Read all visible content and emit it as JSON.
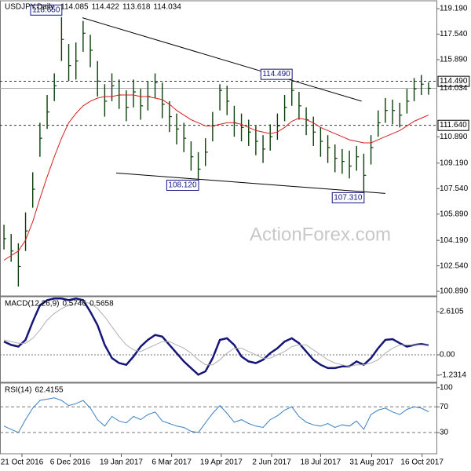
{
  "chart_data": [
    {
      "type": "ohlc",
      "title": "USDJPY,Daily",
      "open": 114.085,
      "color": "#0b3d0b",
      "watermark": "ActionForex.com",
      "ylim": [
        100.59,
        119.7
      ],
      "yticks": [
        {
          "value": 119.19,
          "label": "119.190"
        },
        {
          "value": 117.54,
          "label": "117.540"
        },
        {
          "value": 115.89,
          "label": "115.890"
        },
        {
          "value": 110.89,
          "label": "110.890"
        },
        {
          "value": 109.19,
          "label": "109.190"
        },
        {
          "value": 107.54,
          "label": "107.540"
        },
        {
          "value": 105.89,
          "label": "105.890"
        },
        {
          "value": 104.19,
          "label": "104.190"
        },
        {
          "value": 102.54,
          "label": "102.540"
        },
        {
          "value": 100.89,
          "label": "100.890"
        }
      ],
      "high": [
        105.2,
        104.6,
        104.0,
        106.0,
        108.6,
        111.8,
        113.6,
        115.0,
        118.65,
        116.9,
        117.0,
        118.4,
        117.5,
        115.8,
        114.3,
        115.0,
        114.6,
        113.9,
        114.6,
        114.0,
        114.5,
        115.0,
        114.4,
        113.2,
        112.4,
        111.8,
        110.6,
        109.9,
        110.8,
        112.5,
        114.3,
        114.2,
        112.9,
        112.4,
        112.0,
        111.6,
        111.0,
        111.7,
        112.4,
        113.6,
        114.49,
        113.8,
        112.8,
        112.2,
        111.5,
        111.0,
        110.4,
        110.1,
        110.0,
        110.3,
        109.8,
        111.0,
        112.6,
        113.4,
        113.3,
        113.1,
        114.0,
        114.7,
        114.9,
        114.422
      ],
      "low": [
        103.6,
        102.8,
        101.2,
        103.5,
        106.3,
        109.6,
        111.4,
        113.2,
        115.8,
        114.5,
        114.6,
        116.4,
        115.4,
        113.5,
        112.2,
        113.2,
        112.7,
        111.9,
        112.8,
        112.0,
        112.6,
        113.4,
        112.1,
        111.2,
        110.4,
        109.9,
        108.7,
        108.12,
        109.0,
        110.6,
        112.6,
        112.3,
        110.9,
        110.6,
        110.3,
        109.7,
        109.2,
        110.0,
        110.7,
        111.9,
        112.9,
        112.0,
        111.0,
        110.3,
        109.6,
        109.2,
        108.6,
        108.5,
        108.2,
        108.7,
        107.31,
        109.1,
        110.9,
        111.8,
        111.7,
        111.5,
        112.4,
        113.2,
        113.6,
        113.618
      ],
      "close": [
        104.3,
        103.5,
        102.5,
        104.8,
        107.5,
        110.8,
        112.5,
        114.2,
        117.2,
        115.5,
        115.8,
        117.6,
        116.5,
        114.5,
        113.2,
        114.2,
        113.6,
        112.8,
        113.8,
        112.9,
        113.5,
        114.4,
        113.0,
        112.2,
        111.4,
        110.8,
        109.6,
        108.8,
        109.9,
        111.6,
        113.9,
        113.2,
        111.8,
        111.5,
        111.2,
        110.6,
        110.1,
        110.9,
        111.6,
        112.8,
        113.9,
        112.9,
        112.0,
        111.2,
        110.6,
        110.2,
        109.5,
        109.3,
        109.0,
        109.6,
        108.4,
        110.2,
        111.8,
        112.6,
        112.6,
        112.3,
        113.2,
        114.0,
        114.3,
        114.034
      ],
      "ma": {
        "color": "#d42020",
        "values": [
          102.9,
          103.2,
          103.5,
          104.2,
          105.4,
          106.9,
          108.3,
          109.6,
          110.8,
          111.8,
          112.4,
          112.9,
          113.2,
          113.4,
          113.5,
          113.5,
          113.6,
          113.6,
          113.6,
          113.5,
          113.5,
          113.4,
          113.3,
          113.0,
          112.6,
          112.3,
          112.0,
          111.8,
          111.6,
          111.6,
          111.7,
          111.8,
          111.8,
          111.7,
          111.5,
          111.3,
          111.2,
          111.1,
          111.2,
          111.5,
          111.9,
          112.1,
          112.0,
          111.8,
          111.5,
          111.3,
          111.1,
          110.9,
          110.7,
          110.6,
          110.5,
          110.5,
          110.7,
          110.9,
          111.1,
          111.3,
          111.6,
          111.9,
          112.1,
          112.3
        ]
      },
      "levels": [
        {
          "value": 114.49,
          "label": "114.490"
        },
        {
          "value": 111.64,
          "label": "111.640"
        }
      ],
      "annotations": [
        {
          "bar": 8,
          "value": 118.65,
          "label": "118.650"
        },
        {
          "bar": 40,
          "value": 114.49,
          "label": "114.490"
        },
        {
          "bar": 27,
          "value": 108.12,
          "label": "108.120"
        },
        {
          "bar": 50,
          "value": 107.31,
          "label": "107.310"
        }
      ],
      "trendlines": [
        {
          "x": [
            10.9,
            49.7
          ],
          "y": [
            118.6,
            113.2
          ]
        },
        {
          "x": [
            15.6,
            53.0
          ],
          "y": [
            108.55,
            107.23
          ]
        }
      ]
    },
    {
      "type": "macd",
      "title": "MACD(12,26,9)",
      "ylim": [
        -1.66,
        3.51
      ],
      "yticks": [
        2.6105,
        {
          "value": 0,
          "label": "0.00"
        },
        -1.2314
      ],
      "levels": [
        0
      ],
      "series": [
        {
          "color": "#15157a",
          "values": [
            0.8,
            0.6,
            0.5,
            0.9,
            2.0,
            3.0,
            3.3,
            3.4,
            3.4,
            3.3,
            3.4,
            3.3,
            2.6,
            1.8,
            0.6,
            -0.2,
            -0.5,
            -0.6,
            -0.1,
            0.5,
            0.9,
            1.2,
            1.1,
            0.6,
            0.1,
            -0.4,
            -0.8,
            -1.2,
            -1.0,
            -0.2,
            0.9,
            1.0,
            0.6,
            -0.1,
            -0.4,
            -0.5,
            -0.3,
            0.1,
            0.4,
            0.8,
            1.0,
            0.7,
            0.2,
            -0.3,
            -0.6,
            -0.8,
            -0.8,
            -0.7,
            -0.7,
            -0.4,
            -0.6,
            -0.2,
            0.4,
            0.9,
            0.95,
            0.7,
            0.5,
            0.6,
            0.65,
            0.5746
          ]
        },
        {
          "color": "#b0b0b0",
          "values": [
            0.9,
            0.8,
            0.7,
            0.7,
            1.0,
            1.5,
            2.1,
            2.5,
            2.8,
            3.0,
            3.1,
            3.2,
            3.1,
            2.8,
            2.3,
            1.7,
            1.1,
            0.6,
            0.3,
            0.2,
            0.4,
            0.6,
            0.8,
            0.8,
            0.6,
            0.4,
            0.1,
            -0.3,
            -0.6,
            -0.6,
            -0.3,
            0.1,
            0.4,
            0.4,
            0.2,
            0.0,
            -0.2,
            -0.2,
            0.0,
            0.2,
            0.5,
            0.6,
            0.6,
            0.3,
            0.0,
            -0.3,
            -0.5,
            -0.6,
            -0.7,
            -0.6,
            -0.6,
            -0.5,
            -0.3,
            0.1,
            0.4,
            0.6,
            0.6,
            0.6,
            0.6,
            0.5658
          ]
        }
      ]
    },
    {
      "type": "rsi",
      "title": "RSI(14)",
      "ylim": [
        -3,
        107
      ],
      "yticks": [
        100,
        70,
        30
      ],
      "levels": [
        70,
        30
      ],
      "series": [
        {
          "color": "#3a7fc0",
          "values": [
            40,
            35,
            30,
            50,
            68,
            80,
            82,
            84,
            80,
            72,
            75,
            80,
            68,
            50,
            40,
            55,
            48,
            45,
            55,
            50,
            58,
            62,
            48,
            44,
            40,
            38,
            32,
            30,
            45,
            60,
            72,
            60,
            46,
            50,
            44,
            40,
            38,
            50,
            56,
            65,
            70,
            55,
            46,
            42,
            40,
            44,
            38,
            42,
            40,
            48,
            35,
            58,
            65,
            68,
            62,
            58,
            66,
            70,
            68,
            62.4155
          ]
        }
      ],
      "xlim": [
        -0.55,
        60.1
      ],
      "xticks": [
        {
          "value": 2.5,
          "label": "21 Oct 2016"
        },
        {
          "value": 9.2,
          "label": "6 Dec 2016"
        },
        {
          "value": 16.3,
          "label": "19 Jan 2017"
        },
        {
          "value": 23.3,
          "label": "6 Mar 2017"
        },
        {
          "value": 30.2,
          "label": "19 Apr 2017"
        },
        {
          "value": 37.2,
          "label": "2 Jun 2017"
        },
        {
          "value": 44,
          "label": "18 Jul 2017"
        },
        {
          "value": 51.1,
          "label": "31 Aug 2017"
        },
        {
          "value": 58.1,
          "label": "16 Oct 2017"
        }
      ]
    }
  ]
}
